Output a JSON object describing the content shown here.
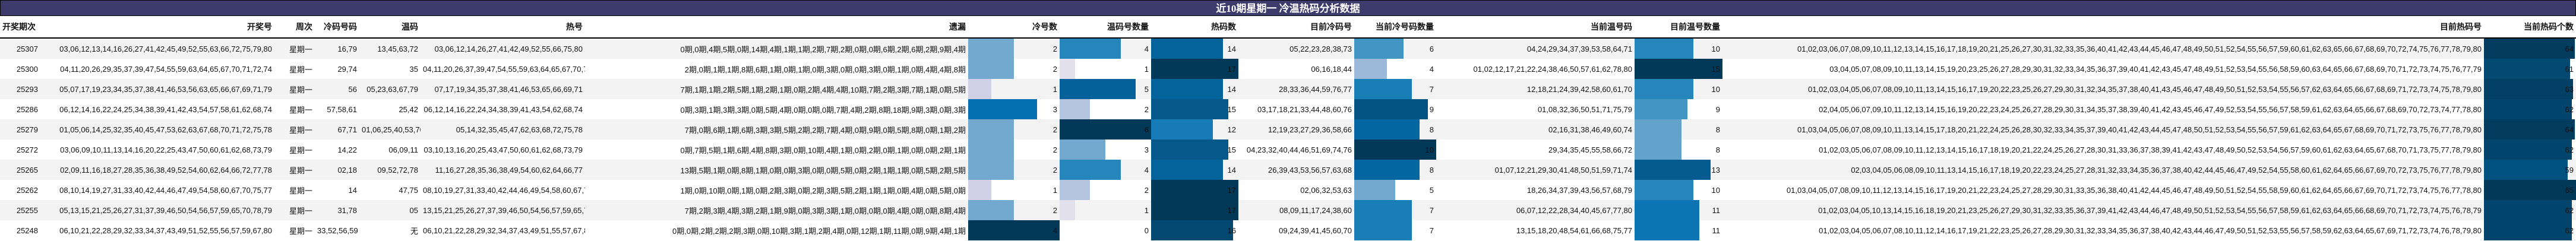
{
  "title": "近10期星期一 冷温热码分析数据",
  "headers": [
    "开奖期次",
    "开奖号",
    "周次",
    "冷码号码",
    "温码",
    "热号",
    "遗漏",
    "冷号数",
    "温码号数量",
    "热码数",
    "目前冷码号",
    "当前冷号码数量",
    "当前温号码",
    "目前温号数量",
    "目前热码号",
    "当前热码个数"
  ],
  "palette": [
    "#fff7fb",
    "#ece7f2",
    "#d0d1e6",
    "#a6bddb",
    "#74a9cf",
    "#3690c0",
    "#0570b0",
    "#045a8d",
    "#023858"
  ],
  "colors": {
    "title_bg": "#3d3b6b",
    "row_alt": "#f3f3f3"
  },
  "rows": [
    {
      "period": "25307",
      "numbers": "03,06,12,13,14,16,26,27,41,42,45,49,52,55,63,66,72,75,79,80",
      "weekday": "星期一",
      "cold": "16,79",
      "warm": "13,45,63,72",
      "hot": "03,06,12,14,26,27,41,42,49,52,55,66,75,80",
      "omission": "0期,0期,4期,5期,0期,14期,4期,1期,1期,2期,7期,2期,0期,0期,6期,2期,6期,2期,9期,4期",
      "cold_count": 2,
      "warm_count": 4,
      "hot_count": 14,
      "cur_cold": "05,22,23,28,38,73",
      "cur_cold_count": 6,
      "cur_warm": "04,24,29,34,37,39,53,58,64,71",
      "cur_warm_count": 10,
      "cur_hot": "01,02,03,06,07,08,09,10,11,12,13,14,15,16,17,18,19,20,21,25,26,27,30,31,32,33,35,36,40,41,42,43,44,45,46,47,48,49,50,51,52,54,55,56,57,59,60,61,62,63,65,66,67,68,69,70,72,74,75,76,77,78,79,80",
      "cur_hot_count": 64
    },
    {
      "period": "25300",
      "numbers": "04,11,20,26,29,35,37,39,47,54,55,59,63,64,65,67,70,71,72,74",
      "weekday": "星期一",
      "cold": "29,74",
      "warm": "35",
      "hot": "04,11,20,26,37,39,47,54,55,59,63,64,65,67,70,71,72",
      "omission": "2期,0期,1期,1期,8期,6期,1期,0期,1期,0期,3期,0期,0期,3期,0期,1期,0期,4期,4期,8期",
      "cold_count": 2,
      "warm_count": 1,
      "hot_count": 17,
      "cur_cold": "06,16,18,44",
      "cur_cold_count": 4,
      "cur_warm": "01,02,12,17,21,22,24,38,46,50,57,61,62,78,80",
      "cur_warm_count": 15,
      "cur_hot": "03,04,05,07,08,09,10,11,13,14,15,19,20,23,25,26,27,28,29,30,31,32,33,34,35,36,37,39,40,41,42,43,45,47,48,49,51,52,53,54,55,56,58,59,60,63,64,65,66,67,68,69,70,71,72,73,74,75,76,77,79",
      "cur_hot_count": 61
    },
    {
      "period": "25293",
      "numbers": "05,07,17,19,23,34,35,37,38,41,46,53,56,63,65,66,67,69,71,79",
      "weekday": "星期一",
      "cold": "56",
      "warm": "05,23,63,67,79",
      "hot": "07,17,19,34,35,37,38,41,46,53,65,66,69,71",
      "omission": "7期,1期,1期,2期,5期,1期,2期,1期,0期,2期,4期,4期,10期,7期,2期,3期,7期,1期,0期,5期",
      "cold_count": 1,
      "warm_count": 5,
      "hot_count": 14,
      "cur_cold": "28,33,36,44,59,76,77",
      "cur_cold_count": 7,
      "cur_warm": "12,18,21,24,39,42,58,60,61,70",
      "cur_warm_count": 10,
      "cur_hot": "01,02,03,04,05,06,07,08,09,10,11,13,14,15,16,17,19,20,22,23,25,26,27,29,30,31,32,34,35,37,38,40,41,43,45,46,47,48,49,50,51,52,53,54,55,56,57,62,63,64,65,66,67,68,69,71,72,73,74,75,78,79,80",
      "cur_hot_count": 63
    },
    {
      "period": "25286",
      "numbers": "06,12,14,16,22,24,25,34,38,39,41,42,43,54,57,58,61,62,68,74",
      "weekday": "星期一",
      "cold": "57,58,61",
      "warm": "25,42",
      "hot": "06,12,14,16,22,24,34,38,39,41,43,54,62,68,74",
      "omission": "0期,3期,1期,3期,3期,0期,5期,4期,0期,0期,0期,7期,4期,2期,8期,18期,9期,3期,0期,3期",
      "cold_count": 3,
      "warm_count": 2,
      "hot_count": 15,
      "cur_cold": "03,17,18,21,33,44,48,60,76",
      "cur_cold_count": 9,
      "cur_warm": "01,08,32,36,50,51,71,75,79",
      "cur_warm_count": 9,
      "cur_hot": "02,04,05,06,07,09,10,11,12,13,14,15,16,19,20,22,23,24,25,26,27,28,29,30,31,34,35,37,38,39,40,41,42,43,45,46,47,49,52,53,54,55,56,57,58,59,61,62,63,64,65,66,67,68,69,70,72,73,74,77,78,80",
      "cur_hot_count": 62
    },
    {
      "period": "25279",
      "numbers": "01,05,06,14,25,32,35,40,45,47,53,62,63,67,68,70,71,72,75,78",
      "weekday": "星期一",
      "cold": "67,71",
      "warm": "01,06,25,40,53,70",
      "hot": "05,14,32,35,45,47,62,63,68,72,75,78",
      "omission": "7期,0期,6期,1期,6期,3期,3期,5期,2期,2期,7期,4期,0期,9期,0期,5期,8期,0期,1期,2期",
      "cold_count": 2,
      "warm_count": 6,
      "hot_count": 12,
      "cur_cold": "12,19,23,27,29,36,58,66",
      "cur_cold_count": 8,
      "cur_warm": "02,16,31,38,46,49,60,74",
      "cur_warm_count": 8,
      "cur_hot": "01,03,04,05,06,07,08,09,10,11,13,14,15,17,18,20,21,22,24,25,26,28,30,32,33,34,35,37,39,40,41,42,43,44,45,47,48,50,51,52,53,54,55,56,57,59,61,62,63,64,65,67,68,69,70,71,72,73,75,76,77,78,79,80",
      "cur_hot_count": 64
    },
    {
      "period": "25272",
      "numbers": "03,06,09,10,11,13,14,16,20,22,25,43,47,50,60,61,62,68,73,79",
      "weekday": "星期一",
      "cold": "14,22",
      "warm": "06,09,11",
      "hot": "03,10,13,16,20,25,43,47,50,60,61,62,68,73,79",
      "omission": "0期,7期,5期,1期,6期,4期,8期,3期,0期,10期,4期,1期,0期,2期,0期,1期,0期,0期,2期,1期",
      "cold_count": 2,
      "warm_count": 3,
      "hot_count": 15,
      "cur_cold": "04,23,32,40,44,46,51,69,74,76",
      "cur_cold_count": 10,
      "cur_warm": "29,34,35,45,55,58,66,72",
      "cur_warm_count": 8,
      "cur_hot": "01,02,03,05,06,07,08,09,10,11,12,13,14,15,16,17,18,19,20,21,22,24,25,26,27,28,30,31,33,36,37,38,39,41,42,43,47,48,49,50,52,53,54,56,57,59,60,61,62,63,64,65,67,68,70,71,73,75,77,78,79,80",
      "cur_hot_count": 62
    },
    {
      "period": "25265",
      "numbers": "02,09,11,16,18,27,28,35,36,38,49,52,54,60,62,64,66,72,77,78",
      "weekday": "星期一",
      "cold": "02,18",
      "warm": "09,52,72,78",
      "hot": "11,16,27,28,35,36,38,49,54,60,62,64,66,77",
      "omission": "13期,5期,1期,0期,8期,1期,0期,0期,3期,0期,0期,5期,0期,2期,1期,1期,0期,5期,2期,5期",
      "cold_count": 2,
      "warm_count": 4,
      "hot_count": 14,
      "cur_cold": "26,39,43,53,56,57,63,68",
      "cur_cold_count": 8,
      "cur_warm": "01,07,12,21,29,30,41,48,50,51,59,71,74",
      "cur_warm_count": 13,
      "cur_hot": "02,03,04,05,06,08,09,10,11,13,14,15,16,17,18,19,20,22,23,24,25,27,28,31,32,33,34,35,36,37,38,40,42,44,45,46,47,49,52,54,55,58,60,61,62,64,65,66,67,69,70,72,73,75,76,77,78,79,80",
      "cur_hot_count": 59
    },
    {
      "period": "25262",
      "numbers": "08,10,14,19,27,31,33,40,42,44,46,47,49,54,58,60,67,70,75,77",
      "weekday": "星期一",
      "cold": "14",
      "warm": "47,75",
      "hot": "08,10,19,27,31,33,40,42,44,46,49,54,58,60,67,70,77",
      "omission": "1期,0期,10期,0期,1期,0期,2期,3期,0期,2期,3期,5期,2期,1期,1期,0期,4期,0期,5期,0期",
      "cold_count": 1,
      "warm_count": 2,
      "hot_count": 17,
      "cur_cold": "02,06,32,53,63",
      "cur_cold_count": 5,
      "cur_warm": "18,26,34,37,39,43,56,57,68,79",
      "cur_warm_count": 10,
      "cur_hot": "01,03,04,05,07,08,09,10,11,12,13,14,15,16,17,19,20,21,22,23,24,25,27,28,29,30,31,33,35,36,38,40,41,42,44,45,46,47,48,49,50,51,52,54,55,58,59,60,61,62,64,65,66,67,69,70,71,72,73,74,75,76,77,78,80",
      "cur_hot_count": 65
    },
    {
      "period": "25255",
      "numbers": "05,13,15,21,25,26,27,31,37,39,46,50,54,56,57,59,65,70,78,79",
      "weekday": "星期一",
      "cold": "31,78",
      "warm": "05",
      "hot": "13,15,21,25,26,27,37,39,46,50,54,56,57,59,65,70,79",
      "omission": "7期,2期,3期,4期,3期,2期,1期,9期,0期,3期,3期,1期,0期,0期,0期,4期,0期,0期,8期,4期",
      "cold_count": 2,
      "warm_count": 1,
      "hot_count": 17,
      "cur_cold": "08,09,11,17,24,38,60",
      "cur_cold_count": 7,
      "cur_warm": "06,07,12,22,28,34,40,45,67,77,80",
      "cur_warm_count": 11,
      "cur_hot": "01,02,03,04,05,10,13,14,15,16,18,19,20,21,23,25,26,27,29,30,31,32,33,35,36,37,39,41,42,43,44,46,47,48,49,50,51,52,53,54,55,56,57,58,59,61,62,63,64,65,66,68,69,70,71,72,73,74,75,76,78,79",
      "cur_hot_count": 62
    },
    {
      "period": "25248",
      "numbers": "06,10,21,22,28,29,32,33,34,37,43,49,51,52,55,56,57,59,67,80",
      "weekday": "星期一",
      "cold": "33,52,56,59",
      "warm": "无",
      "hot": "06,10,21,22,28,29,32,34,37,43,49,51,55,57,67,80",
      "omission": "0期,0期,2期,2期,2期,3期,0期,10期,3期,1期,2期,4期,0期,12期,1期,11期,0期,9期,4期,1期",
      "cold_count": 4,
      "warm_count": 0,
      "hot_count": 16,
      "cur_cold": "09,24,39,41,45,60,70",
      "cur_cold_count": 7,
      "cur_warm": "13,15,18,20,48,54,61,66,68,75,77",
      "cur_warm_count": 11,
      "cur_hot": "01,02,03,04,05,06,07,08,10,11,12,14,16,17,19,21,22,23,25,26,27,28,29,30,31,32,33,34,35,36,37,38,40,42,43,44,46,47,49,50,51,52,53,55,56,57,58,59,62,63,64,65,67,69,71,72,73,74,76,78,79,80",
      "cur_hot_count": 62
    }
  ]
}
